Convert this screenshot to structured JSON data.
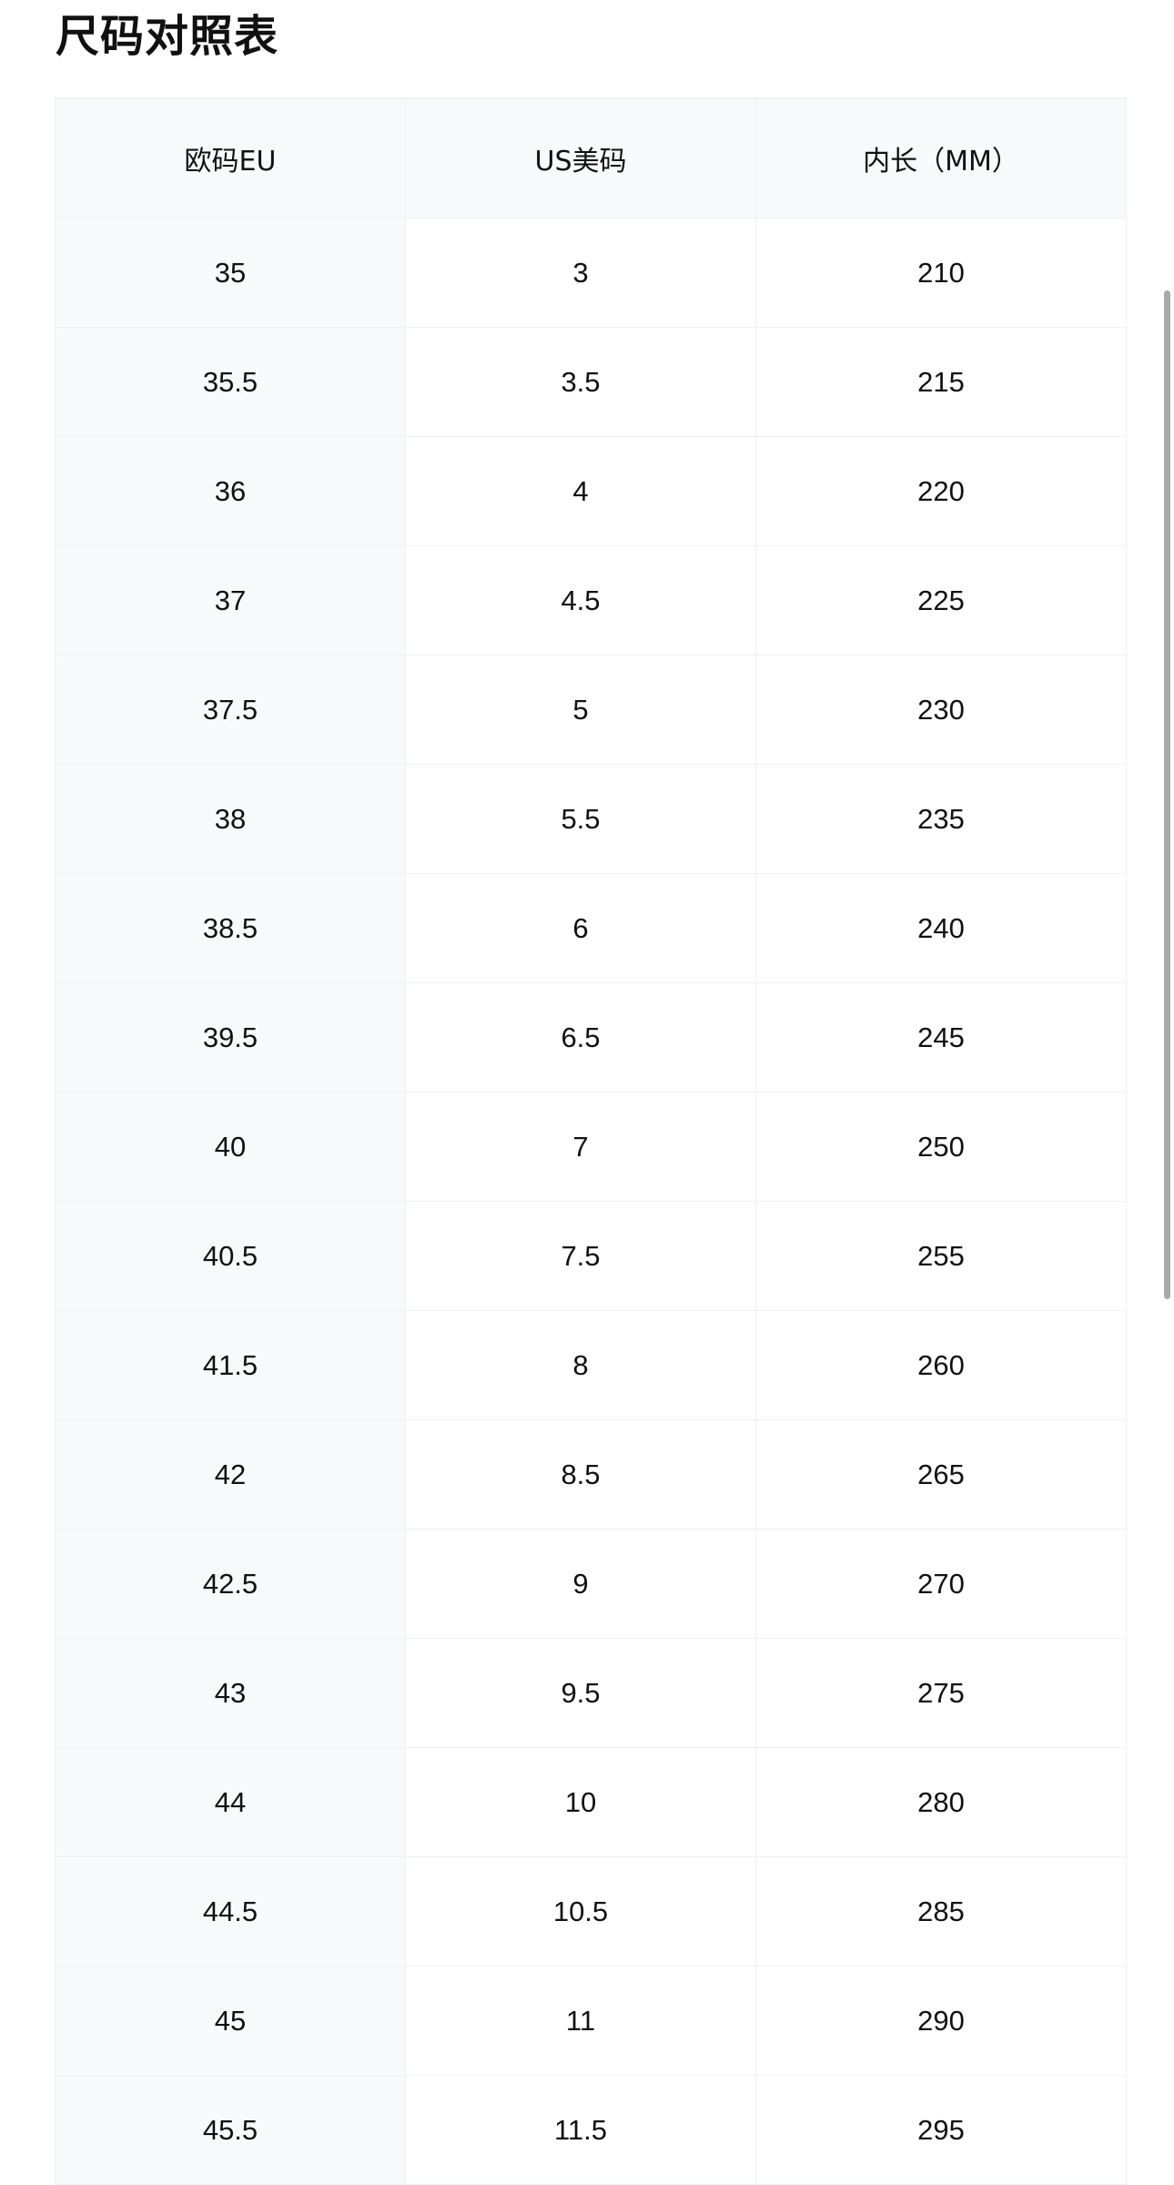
{
  "title": "尺码对照表",
  "table": {
    "headers": [
      "欧码EU",
      "US美码",
      "内长（MM）"
    ],
    "rows": [
      [
        "35",
        "3",
        "210"
      ],
      [
        "35.5",
        "3.5",
        "215"
      ],
      [
        "36",
        "4",
        "220"
      ],
      [
        "37",
        "4.5",
        "225"
      ],
      [
        "37.5",
        "5",
        "230"
      ],
      [
        "38",
        "5.5",
        "235"
      ],
      [
        "38.5",
        "6",
        "240"
      ],
      [
        "39.5",
        "6.5",
        "245"
      ],
      [
        "40",
        "7",
        "250"
      ],
      [
        "40.5",
        "7.5",
        "255"
      ],
      [
        "41.5",
        "8",
        "260"
      ],
      [
        "42",
        "8.5",
        "265"
      ],
      [
        "42.5",
        "9",
        "270"
      ],
      [
        "43",
        "9.5",
        "275"
      ],
      [
        "44",
        "10",
        "280"
      ],
      [
        "44.5",
        "10.5",
        "285"
      ],
      [
        "45",
        "11",
        "290"
      ],
      [
        "45.5",
        "11.5",
        "295"
      ]
    ]
  }
}
